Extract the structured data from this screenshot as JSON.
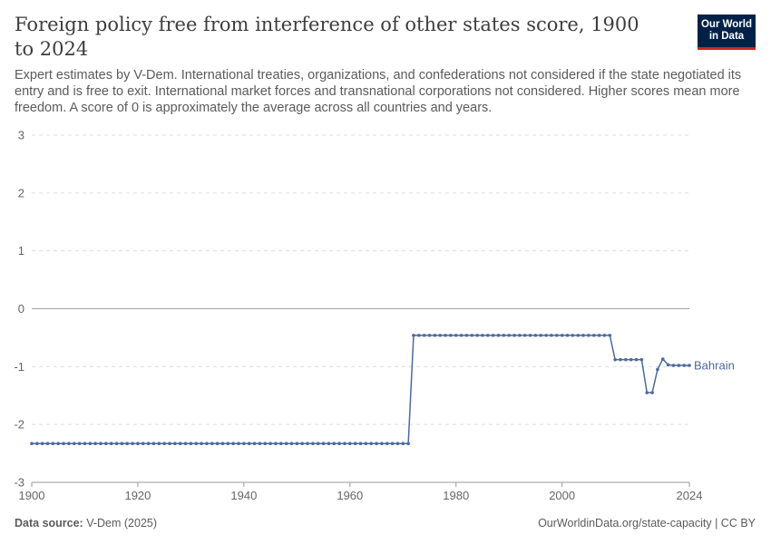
{
  "header": {
    "title": "Foreign policy free from interference of other states score, 1900 to 2024",
    "subtitle": "Expert estimates by V-Dem. International treaties, organizations, and confederations not considered if the state negotiated its entry and is free to exit. International market forces and transnational corporations not considered. Higher scores mean more freedom. A score of 0 is approximately the average across all countries and years.",
    "logo_line1": "Our World",
    "logo_line2": "in Data"
  },
  "footer": {
    "source_label": "Data source:",
    "source_value": "V-Dem (2025)",
    "link": "OurWorldinData.org/state-capacity | CC BY"
  },
  "colors": {
    "series": "#4c6a9c",
    "grid": "#dddddd",
    "text": "#5b5b5b"
  },
  "chart_data": {
    "type": "line",
    "title": "Foreign policy free from interference of other states score, 1900 to 2024",
    "xlim": [
      1900,
      2024
    ],
    "ylim": [
      -3,
      3
    ],
    "x_ticks": [
      "1900",
      "1920",
      "1940",
      "1960",
      "1980",
      "2000",
      "2024"
    ],
    "y_ticks": [
      "3",
      "2",
      "1",
      "0",
      "-1",
      "-2",
      "-3"
    ],
    "grid": "horizontal dashed",
    "series": [
      {
        "name": "Bahrain",
        "segments": [
          {
            "from": 1900,
            "to": 1971,
            "value": -2.33
          },
          {
            "from": 1972,
            "to": 2009,
            "value": -0.46
          },
          {
            "from": 2010,
            "to": 2015,
            "value": -0.88
          }
        ],
        "points": [
          {
            "x": 2016,
            "y": -1.45
          },
          {
            "x": 2017,
            "y": -1.45
          },
          {
            "x": 2018,
            "y": -1.05
          },
          {
            "x": 2019,
            "y": -0.87
          },
          {
            "x": 2020,
            "y": -0.97
          },
          {
            "x": 2021,
            "y": -0.98
          },
          {
            "x": 2022,
            "y": -0.98
          },
          {
            "x": 2023,
            "y": -0.98
          },
          {
            "x": 2024,
            "y": -0.98
          }
        ]
      }
    ]
  }
}
